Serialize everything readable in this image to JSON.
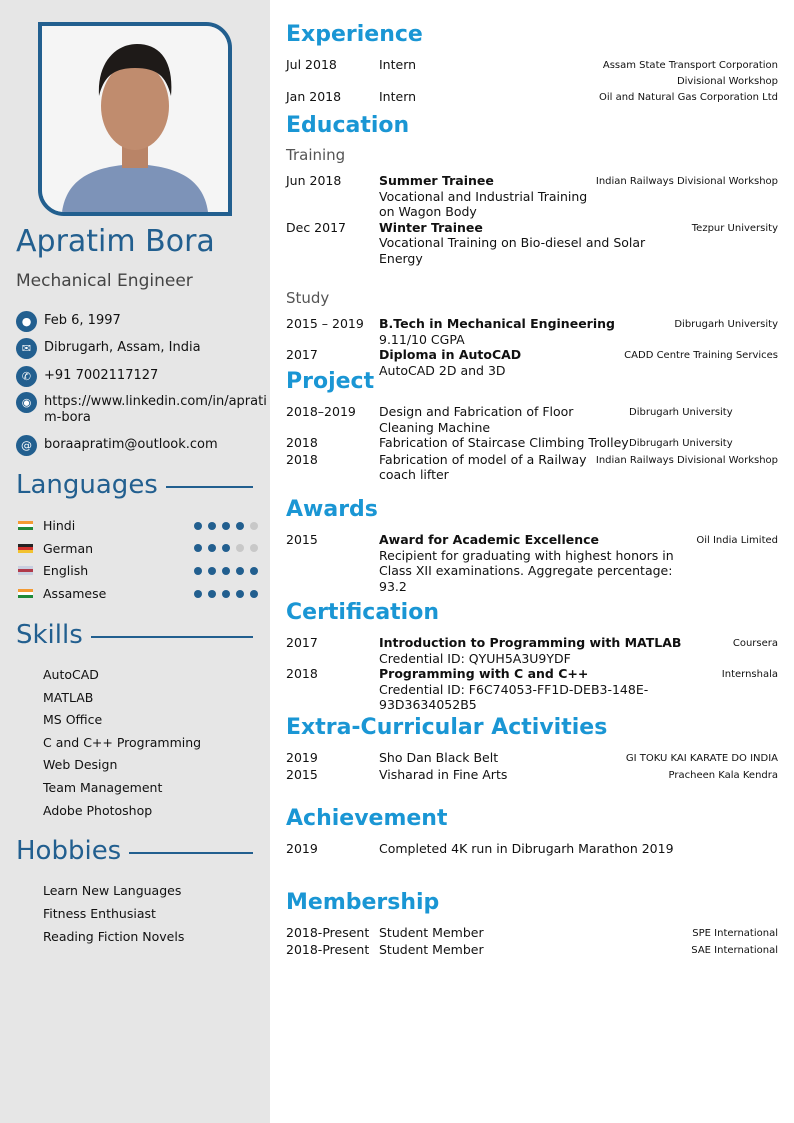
{
  "profile": {
    "name": "Apratim Bora",
    "title": "Mechanical Engineer",
    "contacts": [
      {
        "icon": "person-icon",
        "text": "Feb 6, 1997"
      },
      {
        "icon": "envelope-icon",
        "text": "Dibrugarh, Assam, India"
      },
      {
        "icon": "phone-icon",
        "text": "+91 7002117127"
      },
      {
        "icon": "globe-icon",
        "text": "https://www.linkedin.com/in/apratim-bora"
      },
      {
        "icon": "at-icon",
        "text": "boraapratim@outlook.com"
      }
    ]
  },
  "languages": {
    "heading": "Languages",
    "items": [
      {
        "name": "Hindi",
        "flag": "india",
        "level": 4,
        "max": 5
      },
      {
        "name": "German",
        "flag": "germany",
        "level": 3,
        "max": 5
      },
      {
        "name": "English",
        "flag": "uk",
        "level": 5,
        "max": 5
      },
      {
        "name": "Assamese",
        "flag": "india",
        "level": 5,
        "max": 5
      }
    ]
  },
  "skills": {
    "heading": "Skills",
    "items": [
      "AutoCAD",
      "MATLAB",
      "MS Office",
      "C and C++ Programming",
      "Web Design",
      "Team Management",
      "Adobe Photoshop"
    ]
  },
  "hobbies": {
    "heading": "Hobbies",
    "items": [
      "Learn New Languages",
      "Fitness Enthusiast",
      "Reading Fiction Novels"
    ]
  },
  "colors": {
    "sidebar": "#e6e6e6",
    "dark_blue": "#225f8f",
    "heading_blue": "#1a96d4"
  },
  "experience": {
    "heading": "Experience",
    "rows": [
      {
        "date": "Jul 2018",
        "title": "Intern",
        "org": "Assam State Transport Corporation Divisional Workshop"
      },
      {
        "date": "Jan 2018",
        "title": "Intern",
        "org": "Oil and Natural Gas Corporation Ltd"
      }
    ]
  },
  "education": {
    "heading": "Education",
    "training_label": "Training",
    "training": [
      {
        "date": "Jun 2018",
        "title": "Summer Trainee",
        "desc": "Vocational and Industrial Training on Wagon Body",
        "org": "Indian Railways Divisional Workshop"
      },
      {
        "date": "Dec 2017",
        "title": "Winter Trainee",
        "desc": "Vocational Training on Bio-diesel and Solar Energy",
        "org": "Tezpur University"
      }
    ],
    "study_label": "Study",
    "study": [
      {
        "date": "2015 – 2019",
        "title": "B.Tech in Mechanical Engineering",
        "desc": "9.11/10 CGPA",
        "org": "Dibrugarh University"
      },
      {
        "date": "2017",
        "title": "Diploma in AutoCAD",
        "desc": "AutoCAD 2D and 3D",
        "org": "CADD Centre Training Services"
      }
    ]
  },
  "project": {
    "heading": "Project",
    "rows": [
      {
        "date": "2018–2019",
        "title": "Design and Fabrication of Floor Cleaning Machine",
        "org": "Dibrugarh University"
      },
      {
        "date": "2018",
        "title": "Fabrication of Staircase Climbing Trolley",
        "org": "Dibrugarh University"
      },
      {
        "date": "2018",
        "title": "Fabrication of model of a Railway coach lifter",
        "org": "Indian Railways Divisional Workshop"
      }
    ]
  },
  "awards": {
    "heading": "Awards",
    "rows": [
      {
        "date": "2015",
        "title": "Award for Academic Excellence",
        "desc": "Recipient for graduating with highest honors in Class XII examinations. Aggregate percentage: 93.2",
        "org": "Oil India Limited"
      }
    ]
  },
  "certification": {
    "heading": "Certification",
    "rows": [
      {
        "date": "2017",
        "title": "Introduction to Programming with MATLAB",
        "desc": "Credential ID: QYUH5A3U9YDF",
        "org": "Coursera"
      },
      {
        "date": "2018",
        "title": "Programming with C and C++",
        "desc": "Credential ID: F6C74053-FF1D-DEB3-148E-93D3634052B5",
        "org": "Internshala"
      }
    ]
  },
  "extracurricular": {
    "heading": "Extra-Curricular Activities",
    "rows": [
      {
        "date": "2019",
        "title": "Sho Dan Black Belt",
        "org": "GI TOKU KAI KARATE DO INDIA"
      },
      {
        "date": "2015",
        "title": "Visharad in Fine Arts",
        "org": "Pracheen Kala Kendra"
      }
    ]
  },
  "achievement": {
    "heading": "Achievement",
    "rows": [
      {
        "date": "2019",
        "title": "Completed 4K run in Dibrugarh Marathon 2019"
      }
    ]
  },
  "membership": {
    "heading": "Membership",
    "rows": [
      {
        "date": "2018-Present",
        "title": "Student Member",
        "org": "SPE International"
      },
      {
        "date": "2018-Present",
        "title": "Student Member",
        "org": "SAE International"
      }
    ]
  }
}
